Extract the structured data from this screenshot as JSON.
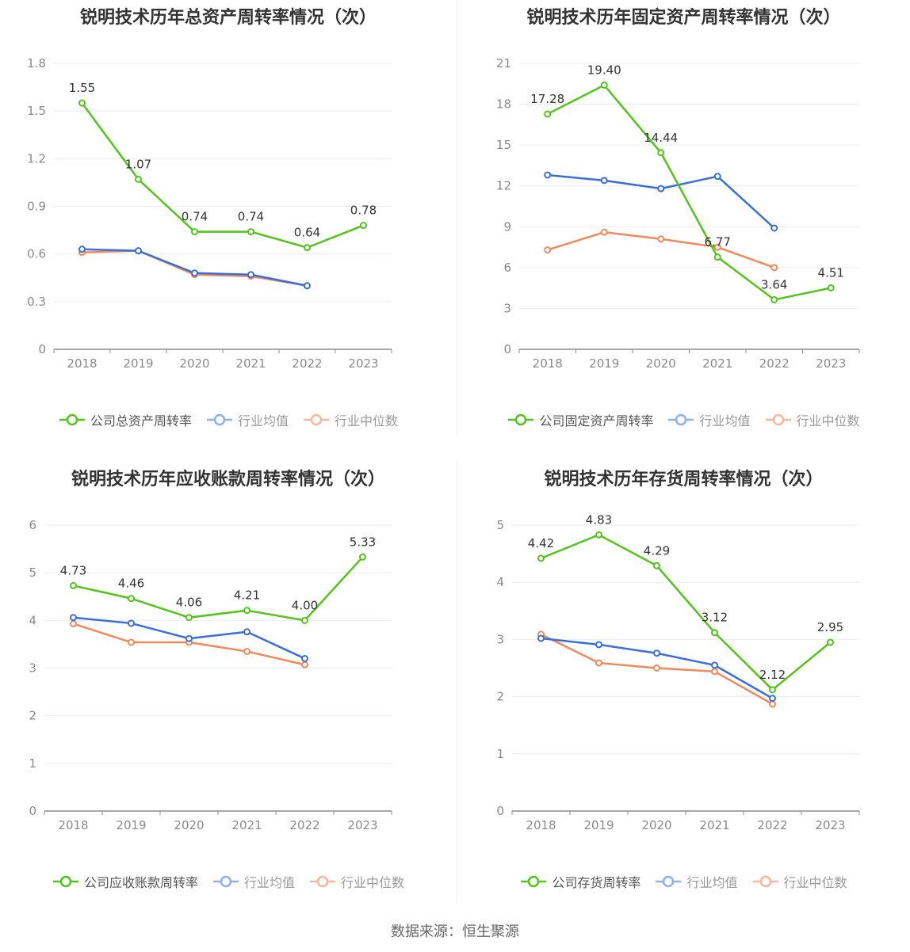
{
  "chart_data": [
    {
      "type": "line",
      "title": "锐明技术历年总资产周转率情况（次）",
      "categories": [
        "2018",
        "2019",
        "2020",
        "2021",
        "2022",
        "2023"
      ],
      "yticks": [
        "0",
        "0.3",
        "0.6",
        "0.9",
        "1.2",
        "1.5",
        "1.8"
      ],
      "ylim": [
        0,
        1.8
      ],
      "grid": true,
      "legend_position": "bottom",
      "series": [
        {
          "name": "公司总资产周转率",
          "color": "#52c41a",
          "values": [
            1.55,
            1.07,
            0.74,
            0.74,
            0.64,
            0.78
          ],
          "labels": [
            "1.55",
            "1.07",
            "0.74",
            "0.74",
            "0.64",
            "0.78"
          ]
        },
        {
          "name": "行业均值",
          "color": "#3b6fd8",
          "values": [
            0.63,
            0.62,
            0.48,
            0.47,
            0.4,
            null
          ]
        },
        {
          "name": "行业中位数",
          "color": "#f08a5d",
          "values": [
            0.61,
            0.62,
            0.47,
            0.46,
            0.4,
            null
          ]
        }
      ]
    },
    {
      "type": "line",
      "title": "锐明技术历年固定资产周转率情况（次）",
      "categories": [
        "2018",
        "2019",
        "2020",
        "2021",
        "2022",
        "2023"
      ],
      "yticks": [
        "0",
        "3",
        "6",
        "9",
        "12",
        "15",
        "18",
        "21"
      ],
      "ylim": [
        0,
        21
      ],
      "grid": true,
      "legend_position": "bottom",
      "series": [
        {
          "name": "公司固定资产周转率",
          "color": "#52c41a",
          "values": [
            17.28,
            19.4,
            14.44,
            6.77,
            3.64,
            4.51
          ],
          "labels": [
            "17.28",
            "19.40",
            "14.44",
            "6.77",
            "3.64",
            "4.51"
          ]
        },
        {
          "name": "行业均值",
          "color": "#3b6fd8",
          "values": [
            12.8,
            12.4,
            11.8,
            12.7,
            8.9,
            null
          ]
        },
        {
          "name": "行业中位数",
          "color": "#f08a5d",
          "values": [
            7.3,
            8.6,
            8.1,
            7.5,
            6.0,
            null
          ]
        }
      ]
    },
    {
      "type": "line",
      "title": "锐明技术历年应收账款周转率情况（次）",
      "categories": [
        "2018",
        "2019",
        "2020",
        "2021",
        "2022",
        "2023"
      ],
      "yticks": [
        "0",
        "1",
        "2",
        "3",
        "4",
        "5",
        "6"
      ],
      "ylim": [
        0,
        6
      ],
      "grid": true,
      "legend_position": "bottom",
      "series": [
        {
          "name": "公司应收账款周转率",
          "color": "#52c41a",
          "values": [
            4.73,
            4.46,
            4.06,
            4.21,
            4.0,
            5.33
          ],
          "labels": [
            "4.73",
            "4.46",
            "4.06",
            "4.21",
            "4.00",
            "5.33"
          ]
        },
        {
          "name": "行业均值",
          "color": "#3b6fd8",
          "values": [
            4.06,
            3.94,
            3.62,
            3.76,
            3.2,
            null
          ]
        },
        {
          "name": "行业中位数",
          "color": "#f08a5d",
          "values": [
            3.93,
            3.54,
            3.54,
            3.35,
            3.07,
            null
          ]
        }
      ]
    },
    {
      "type": "line",
      "title": "锐明技术历年存货周转率情况（次）",
      "categories": [
        "2018",
        "2019",
        "2020",
        "2021",
        "2022",
        "2023"
      ],
      "yticks": [
        "0",
        "1",
        "2",
        "3",
        "4",
        "5"
      ],
      "ylim": [
        0,
        5
      ],
      "grid": true,
      "legend_position": "bottom",
      "series": [
        {
          "name": "公司存货周转率",
          "color": "#52c41a",
          "values": [
            4.42,
            4.83,
            4.29,
            3.12,
            2.12,
            2.95
          ],
          "labels": [
            "4.42",
            "4.83",
            "4.29",
            "3.12",
            "2.12",
            "2.95"
          ]
        },
        {
          "name": "行业均值",
          "color": "#3b6fd8",
          "values": [
            3.02,
            2.91,
            2.76,
            2.55,
            1.97,
            null
          ]
        },
        {
          "name": "行业中位数",
          "color": "#f08a5d",
          "values": [
            3.09,
            2.59,
            2.5,
            2.44,
            1.87,
            null
          ]
        }
      ]
    }
  ],
  "footer": {
    "source": "数据来源：恒生聚源"
  }
}
